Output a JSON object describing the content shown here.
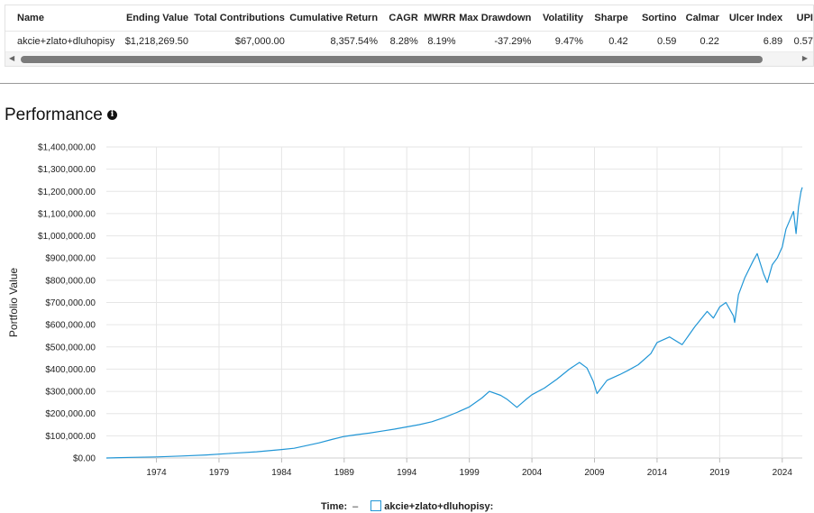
{
  "table": {
    "headers": [
      "Name",
      "Ending Value",
      "Total Contributions",
      "Cumulative Return",
      "CAGR",
      "MWRR",
      "Max Drawdown",
      "Volatility",
      "Sharpe",
      "Sortino",
      "Calmar",
      "Ulcer Index",
      "UPI"
    ],
    "row": {
      "name": "akcie+zlato+dluhopisy",
      "ending_value": "$1,218,269.50",
      "total_contributions": "$67,000.00",
      "cumulative_return": "8,357.54%",
      "cagr": "8.28%",
      "mwrr": "8.19%",
      "max_drawdown": "-37.29%",
      "volatility": "9.47%",
      "sharpe": "0.42",
      "sortino": "0.59",
      "calmar": "0.22",
      "ulcer_index": "6.89",
      "upi": "0.57"
    }
  },
  "performance": {
    "title": "Performance",
    "info_icon": "info-icon"
  },
  "chart_data": {
    "type": "line",
    "ylabel": "Portfolio Value",
    "xlabel": "",
    "ylim": [
      0,
      1400000
    ],
    "y_ticks": [
      "$0.00",
      "$100,000.00",
      "$200,000.00",
      "$300,000.00",
      "$400,000.00",
      "$500,000.00",
      "$600,000.00",
      "$700,000.00",
      "$800,000.00",
      "$900,000.00",
      "$1,000,000.00",
      "$1,100,000.00",
      "$1,200,000.00",
      "$1,300,000.00",
      "$1,400,000.00"
    ],
    "x_ticks": [
      "1974",
      "1979",
      "1984",
      "1989",
      "1994",
      "1999",
      "2004",
      "2009",
      "2014",
      "2019",
      "2024"
    ],
    "xlim": [
      1970.0,
      2025.6
    ],
    "grid": true,
    "series": [
      {
        "name": "akcie+zlato+dluhopisy",
        "color": "#2196d6",
        "x": [
          1970.0,
          1972.0,
          1974.0,
          1976.0,
          1978.0,
          1980.0,
          1982.0,
          1984.0,
          1985.0,
          1986.0,
          1987.0,
          1988.0,
          1989.0,
          1990.0,
          1991.0,
          1992.0,
          1993.0,
          1994.0,
          1995.0,
          1996.0,
          1997.0,
          1998.0,
          1999.0,
          2000.0,
          2000.6,
          2001.5,
          2002.0,
          2002.8,
          2003.5,
          2004.0,
          2005.0,
          2006.0,
          2007.0,
          2007.8,
          2008.4,
          2008.9,
          2009.2,
          2010.0,
          2011.0,
          2011.7,
          2012.5,
          2013.5,
          2014.0,
          2015.0,
          2016.0,
          2017.0,
          2018.0,
          2018.5,
          2019.0,
          2019.5,
          2020.1,
          2020.2,
          2020.5,
          2021.0,
          2021.7,
          2022.0,
          2022.5,
          2022.8,
          2023.2,
          2023.6,
          2024.0,
          2024.3,
          2024.6,
          2024.9,
          2025.1,
          2025.3,
          2025.5,
          2025.6
        ],
        "y": [
          0,
          3000,
          5000,
          9000,
          14000,
          21000,
          28000,
          38000,
          44000,
          56000,
          68000,
          83000,
          97000,
          105000,
          112000,
          121000,
          130000,
          140000,
          150000,
          163000,
          182000,
          205000,
          230000,
          270000,
          300000,
          282000,
          265000,
          228000,
          262000,
          285000,
          315000,
          355000,
          400000,
          430000,
          405000,
          345000,
          290000,
          350000,
          375000,
          395000,
          420000,
          470000,
          520000,
          545000,
          510000,
          590000,
          660000,
          630000,
          680000,
          700000,
          640000,
          610000,
          735000,
          810000,
          890000,
          920000,
          830000,
          790000,
          870000,
          900000,
          950000,
          1030000,
          1070000,
          1110000,
          1010000,
          1130000,
          1200000,
          1218270
        ]
      }
    ]
  },
  "legend": {
    "time_label": "Time:",
    "time_value": "–",
    "series_label": "akcie+zlato+dluhopisy:"
  },
  "scrollbar": {
    "left_arrow": "◀",
    "right_arrow": "▶"
  }
}
